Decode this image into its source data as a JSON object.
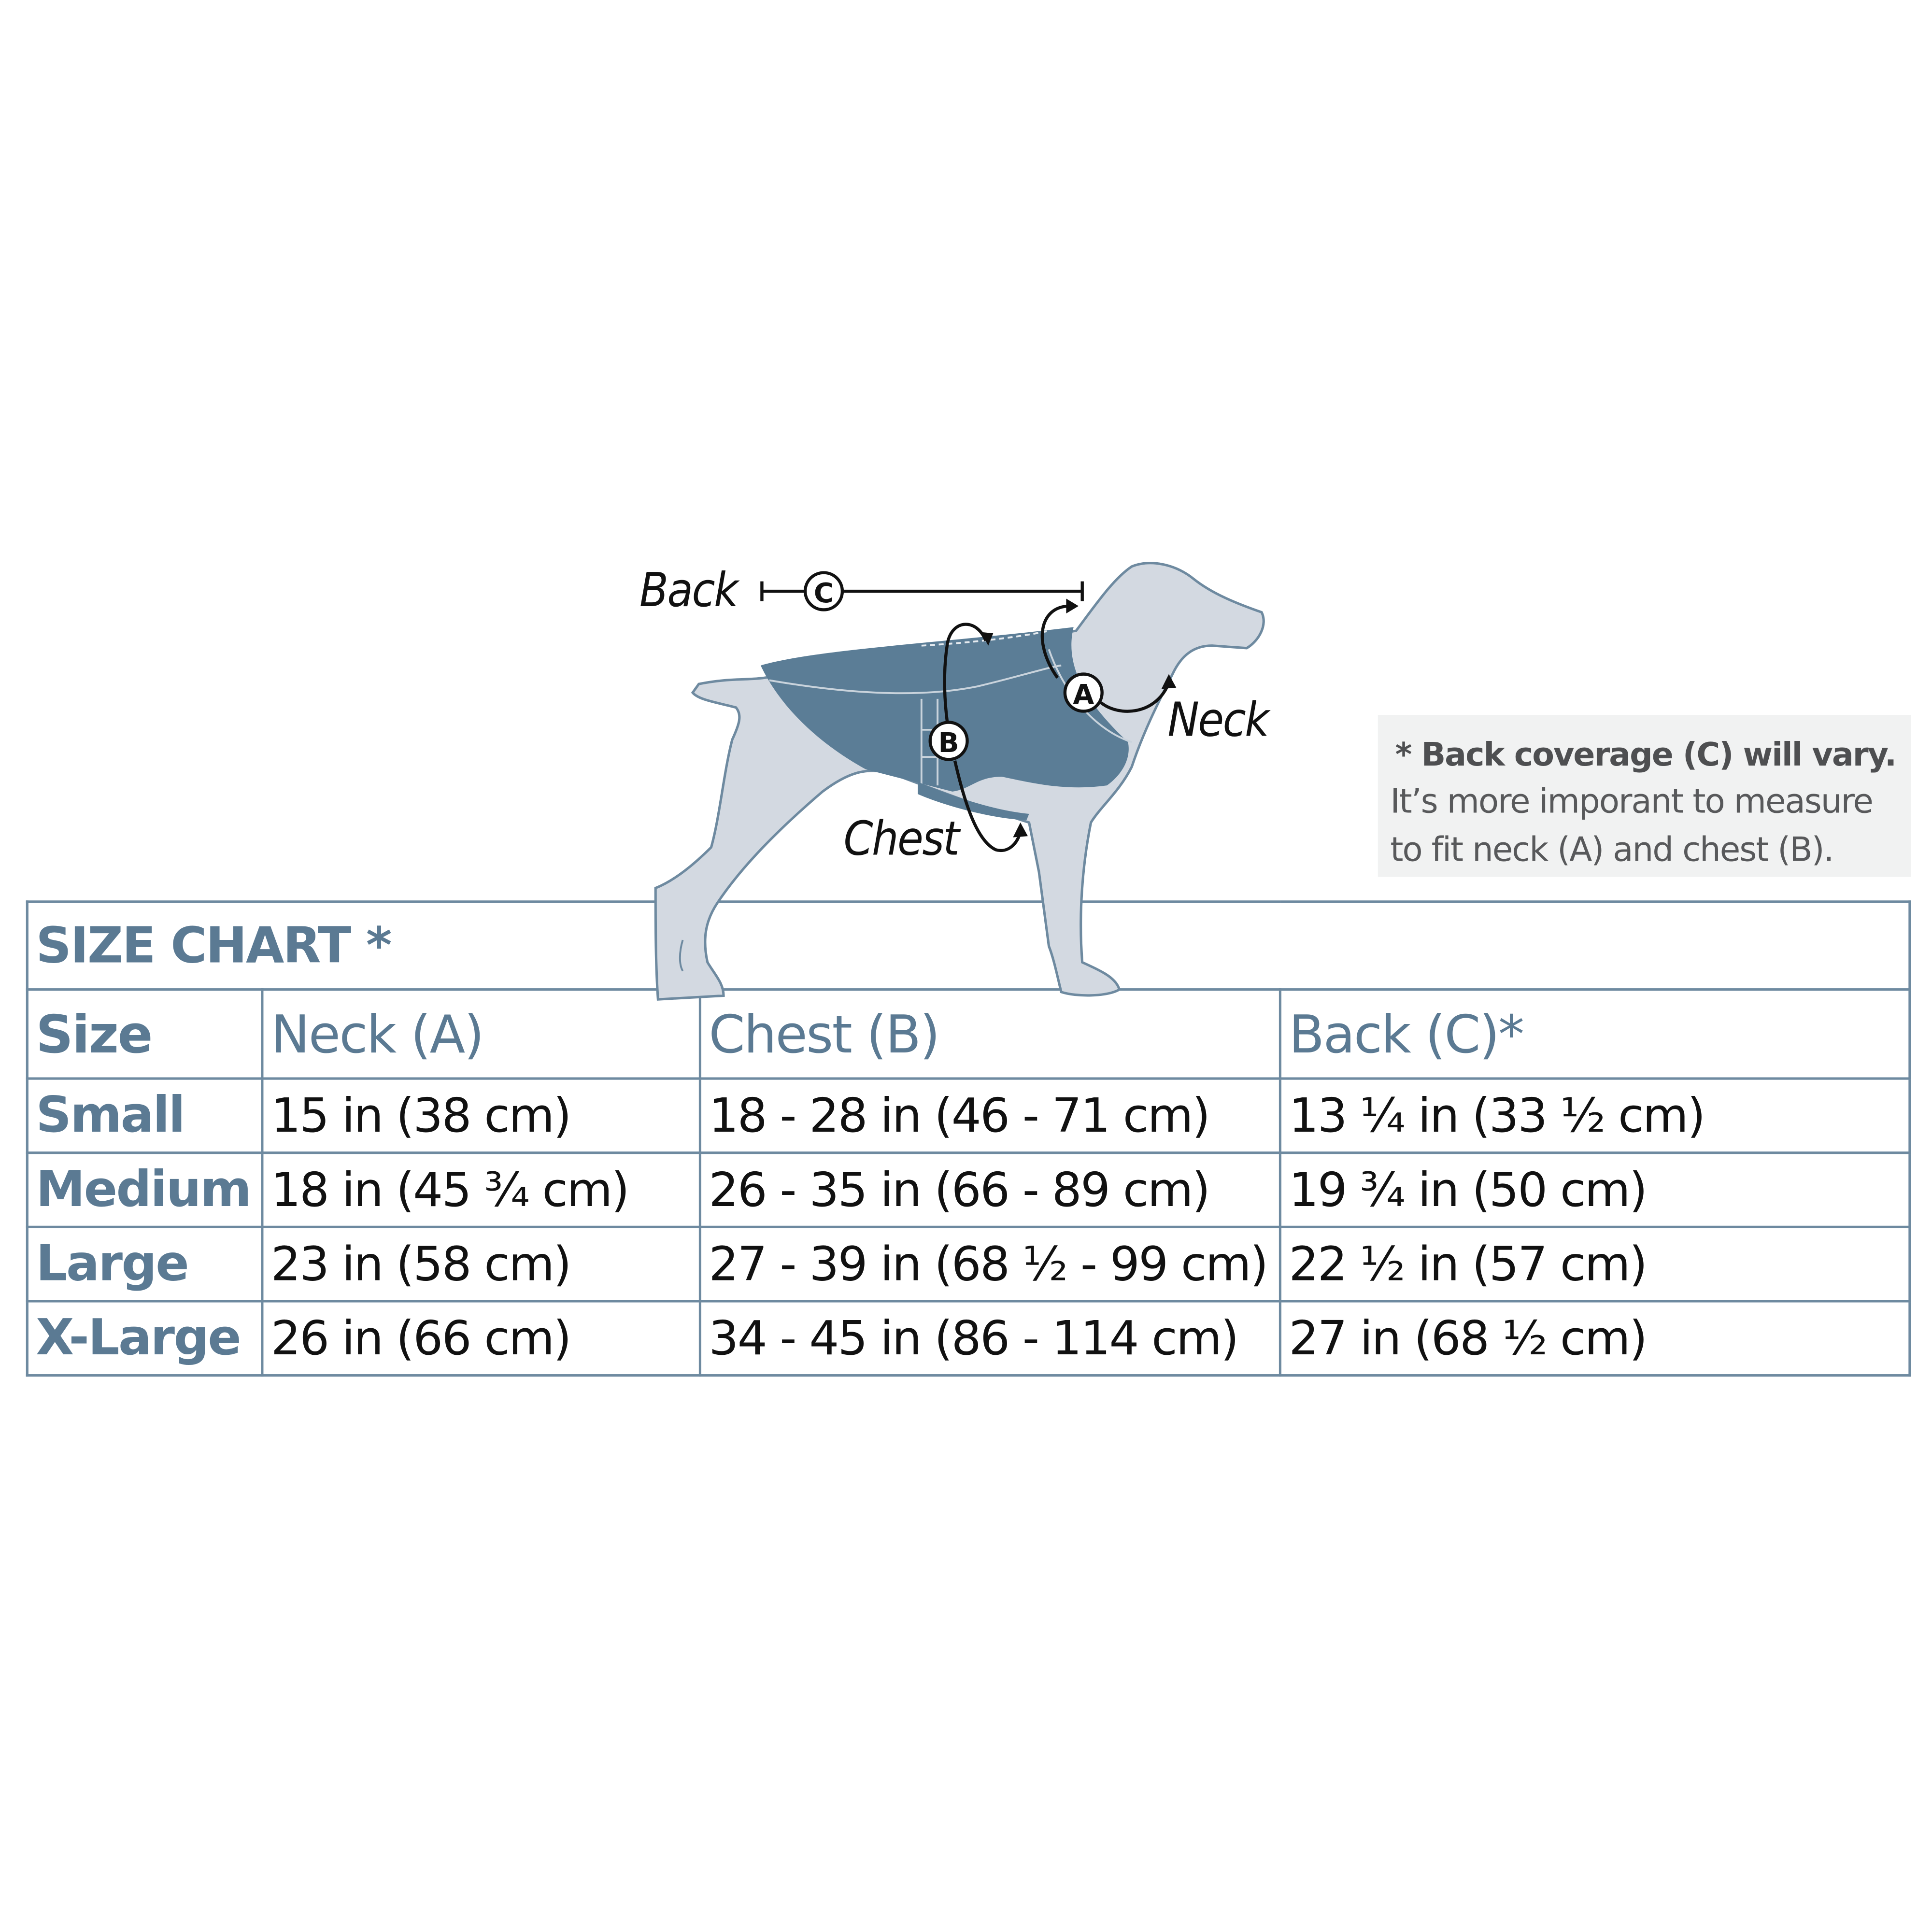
{
  "diagram": {
    "labels": {
      "back": "Back",
      "neck": "Neck",
      "chest": "Chest"
    },
    "markers": {
      "a": "A",
      "b": "B",
      "c": "C"
    },
    "colors": {
      "dog": "#d3d9e1",
      "outline": "#6e8aa0",
      "coat": "#5b7d96",
      "accent": "#5b7a93"
    }
  },
  "note": {
    "heading": "* Back coverage (C) will vary.",
    "line1": "It’s more imporant to measure",
    "line2": "to fit neck (A) and chest (B)."
  },
  "table": {
    "title": "SIZE CHART *",
    "headers": [
      "Size",
      "Neck (A)",
      "Chest (B)",
      "Back (C)*"
    ],
    "rows": [
      [
        "Small",
        "15 in  (38 cm)",
        "18 - 28 in  (46 - 71 cm)",
        "13 ¼ in  (33 ½ cm)"
      ],
      [
        "Medium",
        "18 in  (45 ¾ cm)",
        "26 - 35 in  (66 - 89 cm)",
        "19 ¾ in  (50 cm)"
      ],
      [
        "Large",
        "23 in  (58 cm)",
        "27 - 39 in  (68 ½ - 99 cm)",
        "22 ½ in  (57 cm)"
      ],
      [
        "X-Large",
        "26 in  (66 cm)",
        "34 - 45 in  (86 - 114 cm)",
        "27 in  (68 ½ cm)"
      ]
    ]
  }
}
